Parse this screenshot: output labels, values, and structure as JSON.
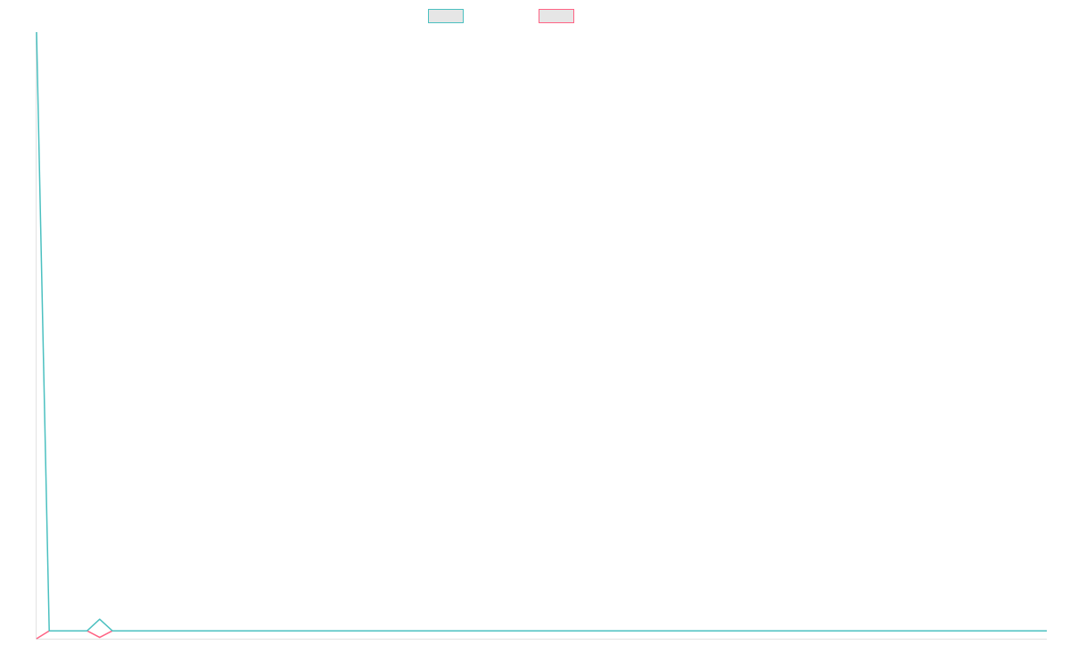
{
  "chart_data": {
    "type": "line",
    "title": "",
    "xlabel": "",
    "ylabel": "",
    "ylim": [
      0,
      100
    ],
    "grid": false,
    "legend_position": "top",
    "series": [
      {
        "color": "#4bc0c0",
        "values": [
          100,
          1.3,
          1.3,
          1.3,
          1.3,
          3.2,
          1.3,
          1.3,
          1.3,
          1.3,
          1.3,
          1.3,
          1.3,
          1.3,
          1.3,
          1.3,
          1.3,
          1.3,
          1.3,
          1.3,
          1.3,
          1.3,
          1.3,
          1.3,
          1.3,
          1.3,
          1.3,
          1.3,
          1.3,
          1.3,
          1.3,
          1.3,
          1.3,
          1.3,
          1.3,
          1.3,
          1.3,
          1.3,
          1.3,
          1.3,
          1.3,
          1.3,
          1.3,
          1.3,
          1.3,
          1.3,
          1.3,
          1.3,
          1.3,
          1.3,
          1.3,
          1.3,
          1.3,
          1.3,
          1.3,
          1.3,
          1.3,
          1.3,
          1.3,
          1.3,
          1.3,
          1.3,
          1.3,
          1.3,
          1.3,
          1.3,
          1.3,
          1.3,
          1.3,
          1.3,
          1.3,
          1.3,
          1.3,
          1.3,
          1.3,
          1.3,
          1.3,
          1.3,
          1.3,
          1.3,
          1.3
        ]
      },
      {
        "color": "#ff6384",
        "values": [
          0,
          1.3,
          1.3,
          1.3,
          1.3,
          0.2,
          1.3,
          1.3,
          1.3,
          1.3,
          1.3,
          1.3,
          1.3,
          1.3,
          1.3,
          1.3,
          1.3,
          1.3,
          1.3,
          1.3,
          1.3,
          1.3,
          1.3,
          1.3,
          1.3,
          1.3,
          1.3,
          1.3,
          1.3,
          1.3,
          1.3,
          1.3,
          1.3,
          1.3,
          1.3,
          1.3,
          1.3,
          1.3,
          1.3,
          1.3,
          1.3,
          1.3,
          1.3,
          1.3,
          1.3,
          1.3,
          1.3,
          1.3,
          1.3,
          1.3,
          1.3,
          1.3,
          1.3,
          1.3,
          1.3,
          1.3,
          1.3,
          1.3,
          1.3,
          1.3,
          1.3,
          1.3,
          1.3,
          1.3,
          1.3,
          1.3,
          1.3,
          1.3,
          1.3,
          1.3,
          1.3,
          1.3,
          1.3,
          1.3,
          1.3,
          1.3,
          1.3,
          1.3,
          1.3,
          1.3,
          1.3
        ]
      }
    ]
  }
}
